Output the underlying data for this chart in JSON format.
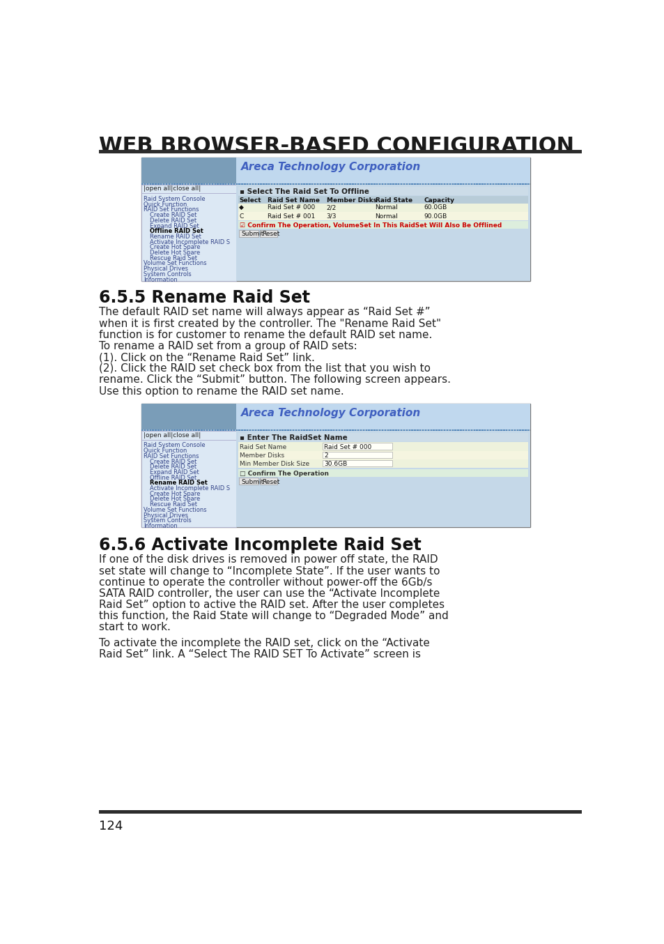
{
  "title": "WEB BROWSER-BASED CONFIGURATION",
  "page_number": "124",
  "background_color": "#ffffff",
  "title_color": "#1a1a1a",
  "bar_color": "#2c2c2c",
  "section_555_title": "6.5.5 Rename Raid Set",
  "section_556_title": "6.5.6 Activate Incomplete Raid Set",
  "section_555_text": [
    "The default RAID set name will always appear as “Raid Set #”",
    "when it is first created by the controller. The \"Rename Raid Set\"",
    "function is for customer to rename the default RAID set name.",
    "To rename a RAID set from a group of RAID sets:",
    "(1). Click on the “Rename Raid Set” link.",
    "(2). Click the RAID set check box from the list that you wish to",
    "rename. Click the “Submit” button. The following screen appears.",
    "Use this option to rename the RAID set name."
  ],
  "section_556_text": [
    "If one of the disk drives is removed in power off state, the RAID",
    "set state will change to “Incomplete State”. If the user wants to",
    "continue to operate the controller without power-off the 6Gb/s",
    "SATA RAID controller, the user can use the “Activate Incomplete",
    "Raid Set” option to active the RAID set. After the user completes",
    "this function, the Raid State will change to “Degraded Mode” and",
    "start to work."
  ],
  "section_556_text2": [
    "To activate the incomplete the RAID set, click on the “Activate",
    "Raid Set” link. A “Select The RAID SET To Activate” screen is"
  ],
  "areca_title_color": "#4060c0",
  "areca_company": "Areca Technology Corporation",
  "sidebar_items_1": [
    "Raid System Console",
    "Quick Function",
    "RAID Set Functions",
    "  Create RAID Set",
    "  Delete RAID Set",
    "  Expand RAID Set",
    "  Offline RAID Set",
    "  Rename RAID Set",
    "  Activate Incomplete RAID S",
    "  Create Hot Spare",
    "  Delete Hot Spare",
    "  Rescue Raid Set",
    "Volume Set Functions",
    "Physical Drives",
    "System Controls",
    "Information"
  ],
  "sidebar_highlight_1": "Offline RAID Set",
  "table1_headers": [
    "Select",
    "Raid Set Name",
    "Member Disks",
    "Raid State",
    "Capacity"
  ],
  "table1_rows": [
    [
      "◆",
      "Raid Set # 000",
      "2/2",
      "Normal",
      "60.0GB"
    ],
    [
      "C",
      "Raid Set # 001",
      "3/3",
      "Normal",
      "90.0GB"
    ]
  ],
  "table1_section_title": "Select The Raid Set To Offline",
  "table1_confirm": "Confirm The Operation, VolumeSet In This RaidSet Will Also Be Offlined",
  "sidebar_items_2": [
    "Raid System Console",
    "Quick Function",
    "RAID Set Functions",
    "  Create RAID Set",
    "  Delete RAID Set",
    "  Expand RAID Set",
    "  Offline RAID Set",
    "  Rename RAID Set",
    "  Activate Incomplete RAID S",
    "  Create Hot Spare",
    "  Delete Hot Spare",
    "  Rescue Raid Set",
    "Volume Set Functions",
    "Physical Drives",
    "System Controls",
    "Information"
  ],
  "sidebar_highlight_2": "Rename RAID Set",
  "table2_section_title": "Enter The RaidSet Name",
  "table2_fields": [
    [
      "Raid Set Name",
      "Raid Set # 000"
    ],
    [
      "Member Disks",
      "2"
    ],
    [
      "Min Member Disk Size",
      "30.6GB"
    ]
  ],
  "table2_confirm": "Confirm The Operation"
}
